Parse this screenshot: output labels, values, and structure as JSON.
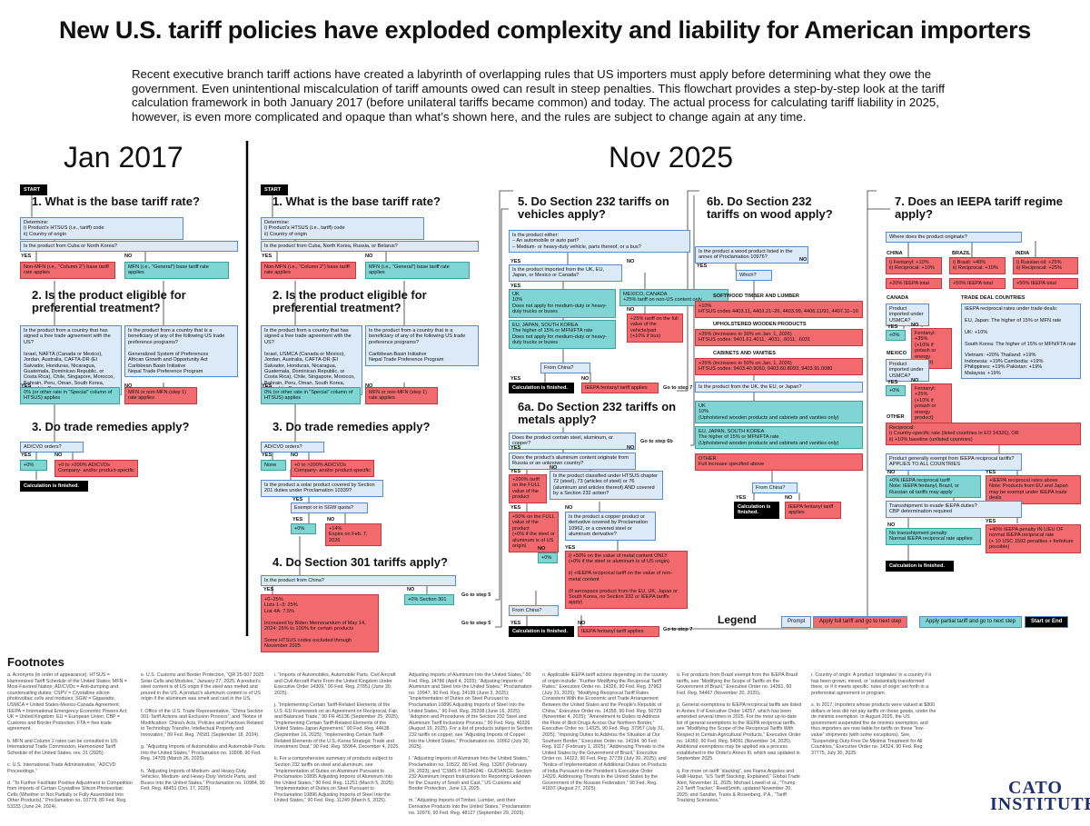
{
  "header": {
    "title": "New U.S. tariff policies have exploded complexity and liability for American importers",
    "intro": "Recent executive branch tariff actions have created a labyrinth of overlapping rules that US importers must apply before determining what they owe the government. Even unintentional miscalculation of tariff amounts owed can result in steep penalties. This flowchart provides a step-by-step look at the tariff calculation framework in both January 2017 (before unilateral tariffs became common) and today. The actual process for calculating tariff liability in 2025, however, is even more complicated and opaque than what’s shown here, and the rules are subject to change again at any time."
  },
  "common": {
    "yes": "YES",
    "no": "NO"
  },
  "jan": {
    "label": "Jan 2017",
    "nodes": [
      "START",
      "1. What is the base tariff rate?",
      "Determine:\ni) Product's HTSUS (i.e., tariff) code\nii) Country of origin",
      "Is the product from Cuba or North Korea?",
      "Non-MFN (i.e., “Column 2”) base tariff rate applies",
      "MFN (i.e., “General”) base tariff rate applies",
      "2. Is the product eligible for preferential treatment?",
      "Is the product from a country that has signed a free trade agreement with the US?\n\nIsrael, NAFTA (Canada or Mexico), Jordan, Australia, CAFTA-DR (El Salvador, Honduras, Nicaragua, Guatemala, Dominican Republic, or Costa Rica), Chile, Singapore, Morocco, Bahrain, Peru, Oman, South Korea, Colombia, Panama",
      "Is the product from a country that is a beneficiary of any of the following US trade preference programs?\n\nGeneralized System of Preferences\nAfrican Growth and Opportunity Act\nCaribbean Basin Initiative\nNepal Trade Preference Program",
      "0% (or other rate in “Special” column of HTSUS) applies",
      "MFN or non-MFN (step 1) rate applies",
      "3. Do trade remedies apply?",
      "AD/CVD orders?",
      "+0%",
      "+0 to >200% AD/CVDs\nCompany- and/or product-specific",
      "Calculation is finished."
    ]
  },
  "nov": {
    "label": "Nov 2025",
    "nodes": [
      "START",
      "1. What is the base tariff rate?",
      "Determine:\ni) Product's HTSUS (i.e., tariff) code\nii) Country of origin",
      "Is the product from Cuba, North Korea, Russia, or Belarus?",
      "Non-MFN (i.e., “Column 2”) base tariff rate applies",
      "MFN (i.e., “General”) base tariff rate applies",
      "2. Is the product eligible for preferential treatment?",
      "Is the product from a country that has signed a free trade agreement with the US?\n\nIsrael, USMCA (Canada or Mexico), Jordan, Australia, CAFTA-DR (El Salvador, Honduras, Nicaragua, Guatemala, Dominican Republic, or Costa Rica), Chile, Singapore, Morocco, Bahrain, Peru, Oman, South Korea, Colombia, Panama",
      "Is the product from a country that is a beneficiary of any of the following US trade preference programs?\n\nCaribbean Basin Initiative\nNepal Trade Preference Program",
      "0% (or other rate in “Special” column of HTSUS) applies",
      "MFN or non-MFN (step 1) rate applies",
      "3. Do trade remedies apply?",
      "AD/CVD orders?",
      "None",
      "+0 to >200% AD/CVDs\nCompany- and/or product-specific",
      "Is the product a solar product covered by Section 201 duties under Proclamation 10339?",
      "Exempt or in SGW quota?",
      "+0%",
      "+14%\nExpire on Feb. 7, 2026",
      "4. Do Section 301 tariffs apply?",
      "Is the product from China?",
      "+0–25%\nLists 1–3: 25%\nList 4A: 7.5%\n\nIncreased by Biden Memorandum of May 14, 2024: 25% to 100% for certain products\n\nSome HTSUS codes excluded through November 2025",
      "+0% Section 301",
      "Go to step 5",
      "Go to step 5",
      "5. Do Section 232 tariffs on vehicles apply?",
      "Is the product either:\n– An automobile or auto part?\n– Medium- or heavy-duty vehicle, parts thereof, or a bus?",
      "Is the product imported from the UK, EU, Japan, or Mexico or Canada?",
      "UK\n10%\nDoes not apply for medium-duty or heavy-duty trucks or buses",
      "MEXICO, CANADA\n+25% tariff on non-US content only",
      "EU, JAPAN, SOUTH KOREA\nThe higher of 15% or MFN/FTA rate\nDoes not apply for medium-duty or heavy-duty trucks or buses",
      "+25% tariff on the full value of the vehicle/part\n(+10% if bus)",
      "From China?",
      "Calculation is finished.",
      "IEEPA fentanyl tariff applies",
      "Go to step 7",
      "6a. Do Section 232 tariffs on metals apply?",
      "Does the product contain steel, aluminum, or copper?",
      "Go to step 6b",
      "Does the product's aluminum content originate from Russia or an unknown country?",
      "+200% tariff on the FULL value of the product",
      "Is the product classified under HTSUS chapter 72 (steel), 73 (articles of steel) or 76 (aluminum and articles thereof) AND covered by a Section 232 action?",
      "+50% on the FULL value of the product\n(+0% if the steel or aluminum is of US origin)",
      "Is the product a copper product or derivative covered by Proclamation 10962, or a covered steel or aluminum derivative?",
      "+0%",
      "i) +50% on the value of metal content ONLY\n(+0% if the steel or aluminum is of US origin)\n\nii) +IEEPA reciprocal tariff on the value of non-metal content\n\n(If aerospace product from the EU, UK, Japan or South Korea, no Section 232 or IEEPA tariffs apply)",
      "From China?",
      "Calculation is finished.",
      "IEEPA fentanyl tariff applies",
      "Go to step 7",
      "6b. Do Section 232 tariffs on wood apply?",
      "Is the product a wood product listed in the annex of Proclamation 10976?",
      "Which?",
      "SOFTWOOD TIMBER AND LUMBER",
      "+10%\nHTSUS codes 4403.11, 4403.21–26, 4403.99, 4406.11/91, 4407.11–19",
      "UPHOLSTERED WOODEN PRODUCTS",
      "+25% (increases to 30% on Jan. 1, 2026)\nHTSUS codes: 9401.61.4011, .4031, .6011, .6031",
      "CABINETS AND VANITIES",
      "+25% (increases to 50% on Jan. 1, 2026)\nHTSUS codes: 9403.40.9060, 9403.60.8093, 9403.91.0080",
      "Is the product from the UK, the EU, or Japan?",
      "UK\n10%\n(Upholstered wooden products and cabinets and vanities only)",
      "EU, JAPAN, SOUTH KOREA\nThe higher of 15% or MFN/FTA rate\n(Upholstered wooden products and cabinets and vanities only)",
      "OTHER\nFull increase specified above",
      "From China?",
      "Calculation is finished.",
      "IEEPA fentanyl tariff applies",
      "7. Does an IEEPA tariff regime apply?",
      "Where does the product originate?",
      "CHINA",
      "i) Fentanyl: +10%\nii) Reciprocal: +10%",
      "+20% IEEPA total",
      "BRAZIL",
      "i) Brazil: +40%\nii) Reciprocal: +10%",
      "+50% IEEPA total",
      "INDIA",
      "i) Russian oil: +25%\nii) Reciprocal: +25%",
      "+50% IEEPA total",
      "CANADA",
      "Product imported under USMCA?",
      "+0%",
      "Fentanyl: +35%\n(+10% if potash or energy product)",
      "MEXICO",
      "Product imported under USMCA?",
      "+0%",
      "Fentanyl: +25%\n(+10% if potash or energy product)",
      "TRADE DEAL COUNTRIES",
      "IEEPA reciprocal rates under trade deals:\n\nEU, Japan: The higher of 15% or MFN rate\n\nUK: +10%\n\nSouth Korea: The higher of 15% or MFN/FTA rate\n\nVietnam: +20%    Thailand: +19%\nIndonesia: +19%    Cambodia: +19%\nPhilippines: +19%    Pakistan: +19%\nMalaysia: +19%",
      "OTHER",
      "Reciprocal:\ni) Country-specific rate (listed countries in EO 14326), OR\nii) +10% baseline (unlisted countries)",
      "Product generally exempt from IEEPA reciprocal tariffs?\nAPPLIES TO ALL COUNTRIES",
      "+0% IEEPA reciprocal tariff\nNote: IEEPA fentanyl, Brazil, or Russian oil tariffs may apply",
      "+IEEPA reciprocal rates above\nNote: Products from EU and Japan may be exempt under IEEPA trade deals",
      "Transshipment to evade IEEPA duties?\nCBP determination required",
      "No transshipment penalty\nNormal IEEPA reciprocal rate applies",
      "+40% IEEPA penalty IN LIEU OF normal IEEPA reciprocal rate\n(+ 19 USC 1592 penalties + forfeiture possible)",
      "Calculation is finished."
    ]
  },
  "legend": {
    "title": "Legend",
    "items": [
      "Prompt",
      "Apply full tariff and go to next step",
      "Apply partial tariff and go to next step",
      "Start or End"
    ]
  },
  "footnotes": {
    "heading": "Footnotes",
    "columns": [
      "a. Acronyms (in order of appearance): HTSUS = Harmonized Tariff Schedule of the United States; MFN = Most-Favored Nation; AD/CVDs = Anti-dumping and countervailing duties; CSPV = Crystalline silicon photovoltaic cells and modules; SGW = Gigawatts; USMCA = United States-Mexico-Canada Agreement; IEEPA = International Emergency Economic Powers Act; UK = United Kingdom; EU = European Union; CBP = Customs and Border Protection. FTA = free trade agreement.\n\nb. MFN and Column 2 rates can be consulted in US International Trade Commission, Harmonized Tariff Schedule of the United States, rev. 31 (2025).\n\nc. U.S. International Trade Administration, “ADCVD Proceedings.”\n\nd. “To Further Facilitate Positive Adjustment to Competition from Imports of Certain Crystalline Silicon Photovoltaic Cells (Whether or Not Partially or Fully Assembled Into Other Products),” Proclamation no. 10779, 89 Fed. Reg. 53333 (June 24, 2024).",
      "e. U.S. Customs and Border Protection, “QR 25-507 2025 Solar Cells and Modules,” January 27, 2025. A product's steel content is of US origin if the steel was melted and poured in the US. A product's aluminum content is of US origin if the aluminum was smelt and cast in the US.\n\nf. Office of the U.S. Trade Representative, “China Section 301-Tariff Actions and Exclusion Process”; and “Notice of Modification: China's Acts, Policies and Practices Related to Technology Transfer, Intellectual Property and Innovation,” 89 Fed. Reg. 76581 (September 18, 2024).\n\ng. “Adjusting Imports of Automobiles and Automobile Parts Into the United States,” Proclamation no. 10908, 90 Fed. Reg. 14705 (March 26, 2025).\n\nh. “Adjusting Imports of Medium- and Heavy-Duty Vehicles, Medium- and Heavy-Duty Vehicle Parts, and Buses Into the United States,” Proclamation no. 10984, 90 Fed. Reg. 48451 (Oct. 17, 2025).",
      "i. “Imports of Automobiles, Automobile Parts, Civil Aircraft and Civil Aircraft Parts From the United Kingdom Under Executive Order 14309,” 90 Fed. Reg. 27851 (June 30, 2025).\n\nj. “Implementing Certain Tariff-Related Elements of the U.S.-EU Framework on an Agreement on Reciprocal, Fair, and Balanced Trade,” 90 FR 45136 (September 25, 2025); “Implementing Certain Tariff-Related Elements of the United States-Japan Agreement,” 90 Fed. Reg. 44638 (September 16, 2025); “Implementing Certain Tariff-Related Elements of the U.S.-Korea Strategic Trade and Investment Deal,” 90 Fed. Reg. 55964, December 4, 2025.\n\nk. For a comprehensive summary of products subject to Section 232 tariffs on steel and aluminum, see “Implementation of Duties on Aluminum Pursuant to Proclamation 10895 Adjusting Imports of Aluminum Into the United States,” 90 Fed. Reg. 11251 (March 5, 2025); “Implementation of Duties on Steel Pursuant to Proclamation 10896 Adjusting Imports of Steel Into the United States,” 90 Fed. Reg. 11249 (March 5, 2025).",
      "Adjusting Imports of Aluminum Into the United States,” 90 Fed. Reg. 14786 (April 4, 2025); “Adjusting Imports of Aluminum and Steel Into the United States,” Proclamation no. 10947, 90 Fed. Reg. 24199 (June 3, 2025); “Implementation of Duties on Steel Pursuant to Proclamation 10896 Adjusting Imports of Steel Into the United States,” 90 Fed. Reg. 25208 (June 16, 2025); “Adoption and Procedures of the Section 232 Steel and Aluminum Tariff Inclusions Process,” 90 Fed. Reg. 40326 (August 19, 2025). For a list of products subject to Section 232 tariffs on copper, see “Adjusting Imports of Copper Into the United States,” Proclamation no. 10962 (July 30, 2025).\n\nl. “Adjusting Imports of Aluminum Into the United States,” Proclamation no. 10522, 88 Fed. Reg. 13267 (February 24, 2023); and “CSMS # 65346246 - GUIDANCE: Section 232 Aluminum Import Instructions for Reporting Unknown for the Country of Smelt and Cast,” US Customs and Border Protection, June 13, 2025.\n\nm. “Adjusting Imports of Timber, Lumber, and their Derivative Products Into the United States,” Proclamation no. 10976, 90 Fed. Reg. 48127 (September 29, 2025).",
      "n. Applicable IEEPA tariff actions depending on the country of origin include: “Further Modifying the Reciprocal Tariff Rates,” Executive Order no. 14326, 90 Fed. Reg. 37963 (July 31, 2025); “Modifying Reciprocal Tariff Rates Consistent With the Economic and Trade Arrangement Between the United States and the People's Republic of China,” Executive Order no. 14358, 90 Fed. Reg. 50729 (November 4, 2025); “Amendment to Duties to Address the Flow of Illicit Drugs Across Our Northern Border,” Executive Order no. 14325, 90 Fed. Reg. 37957 (July 31, 2025); “Imposing Duties to Address the Situation at Our Southern Border,” Executive Order no. 14194, 90 Fed. Reg. 9117 (February 1, 2025); “Addressing Threats to the United States by the Government of Brazil,” Executive Order no. 14323, 90 Fed. Reg. 37739 (July 30, 2025); and “Notice of Implementation of Additional Duties on Products of India Pursuant to the President's Executive Order 14329, Addressing Threats to the United States by the Government of the Russian Federation,” 90 Fed. Reg. 41837 (August 27, 2025).",
      "o. For products from Brazil exempt from the IEEPA Brazil tariffs, see “Modifying the Scope of Tariffs on the Government of Brazil,” Executive Order no. 14361, 90 Fed. Reg. 54467 (November 20, 2025).\n\np. General exemptions to IEEPA reciprocal tariffs are listed in Annex II of Executive Order 14257, which has been amended several times in 2025. For the most up-to-date list of general exemptions to the IEEPA reciprocal tariffs, see “Modifying the Scope of the Reciprocal Tariffs With Respect to Certain Agricultural Products,” Executive Order no. 14360, 90 Fed. Reg. 54091 (November 14, 2025). Additional exemptions may be applied via a process established in the Order's Annex III, which was updated in September 2025.\n\nq. For more on tariff “stacking”, see Fiama Angeles and Hallt Harpur, “US Tariff Stacking, Explained,” Global Trade Alert, November 11, 2025; Michael Lowell et al., “Trump 2.0 Tariff Tracker,” ReedSmith, updated November 20, 2025; and Sandler, Travis & Rosenberg, P.A., “Tariff Tracking Scenarios.”",
      "r. Country of origin: A product ‘originates’ in a country if it has been grown, mined, or ‘substantially transformed’ there, or if it meets specific ‘rules of origin’ set forth in a preferential agreement or program.\n\ns. In 2017, importers whose products were valued at $800 dollars or less did not pay tariffs on those goods, under the de minimis exemption. In August 2025, the US government suspended the de minimis exemption, and thus importers are now liable for tariffs on these “low-value” shipments (with some exceptions). See, “Suspending Duty-Free De Minimis Treatment for All Countries,” Executive Order no. 14324, 90 Fed. Reg. 37775, July 30, 2025."
    ]
  },
  "logo": "CATO\nINSTITUTE"
}
